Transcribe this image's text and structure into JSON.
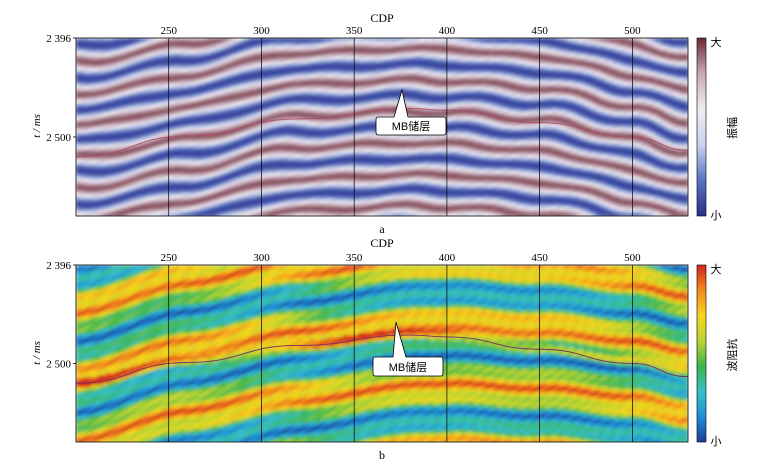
{
  "chart_data": [
    {
      "type": "heatmap",
      "panel_label": "a",
      "xlabel": "CDP",
      "ylabel": "t / ms",
      "x_ticks": [
        250,
        300,
        350,
        400,
        450,
        500
      ],
      "xlim": [
        200,
        530
      ],
      "y_ticks": [
        {
          "value": 2396,
          "label": "2 396"
        },
        {
          "value": 2500,
          "label": "2 500"
        }
      ],
      "ylim": [
        2396,
        2583
      ],
      "colorbar": {
        "label": "振幅",
        "max_label": "大",
        "min_label": "小",
        "colors": [
          "#2a2f8f",
          "#5a73c2",
          "#c7d3ee",
          "#f1ecf1",
          "#c9a9b9",
          "#6b2a34"
        ]
      },
      "vertical_lines_at": [
        250,
        300,
        350,
        400,
        450,
        500
      ],
      "annotation": "MB储层",
      "horizon_curve": {
        "x": [
          200,
          260,
          320,
          380,
          400,
          450,
          500,
          530
        ],
        "t": [
          2521,
          2499,
          2481,
          2470,
          2472,
          2485,
          2500,
          2514
        ]
      }
    },
    {
      "type": "heatmap",
      "panel_label": "b",
      "xlabel": "CDP",
      "ylabel": "t / ms",
      "x_ticks": [
        250,
        300,
        350,
        400,
        450,
        500
      ],
      "xlim": [
        200,
        530
      ],
      "y_ticks": [
        {
          "value": 2396,
          "label": "2 396"
        },
        {
          "value": 2500,
          "label": "2 500"
        }
      ],
      "ylim": [
        2396,
        2583
      ],
      "colorbar": {
        "label": "波阻抗",
        "max_label": "大",
        "min_label": "小",
        "colors": [
          "#1f3e9c",
          "#1d8fd6",
          "#38c1c8",
          "#3cb54a",
          "#b9d531",
          "#f7d51c",
          "#f28a1e",
          "#d3221f"
        ]
      },
      "vertical_lines_at": [
        250,
        300,
        350,
        400,
        450,
        500
      ],
      "annotation": "MB储层",
      "horizon_curve": {
        "x": [
          200,
          260,
          320,
          380,
          400,
          450,
          500,
          530
        ],
        "t": [
          2521,
          2499,
          2481,
          2470,
          2472,
          2485,
          2500,
          2514
        ]
      }
    }
  ]
}
